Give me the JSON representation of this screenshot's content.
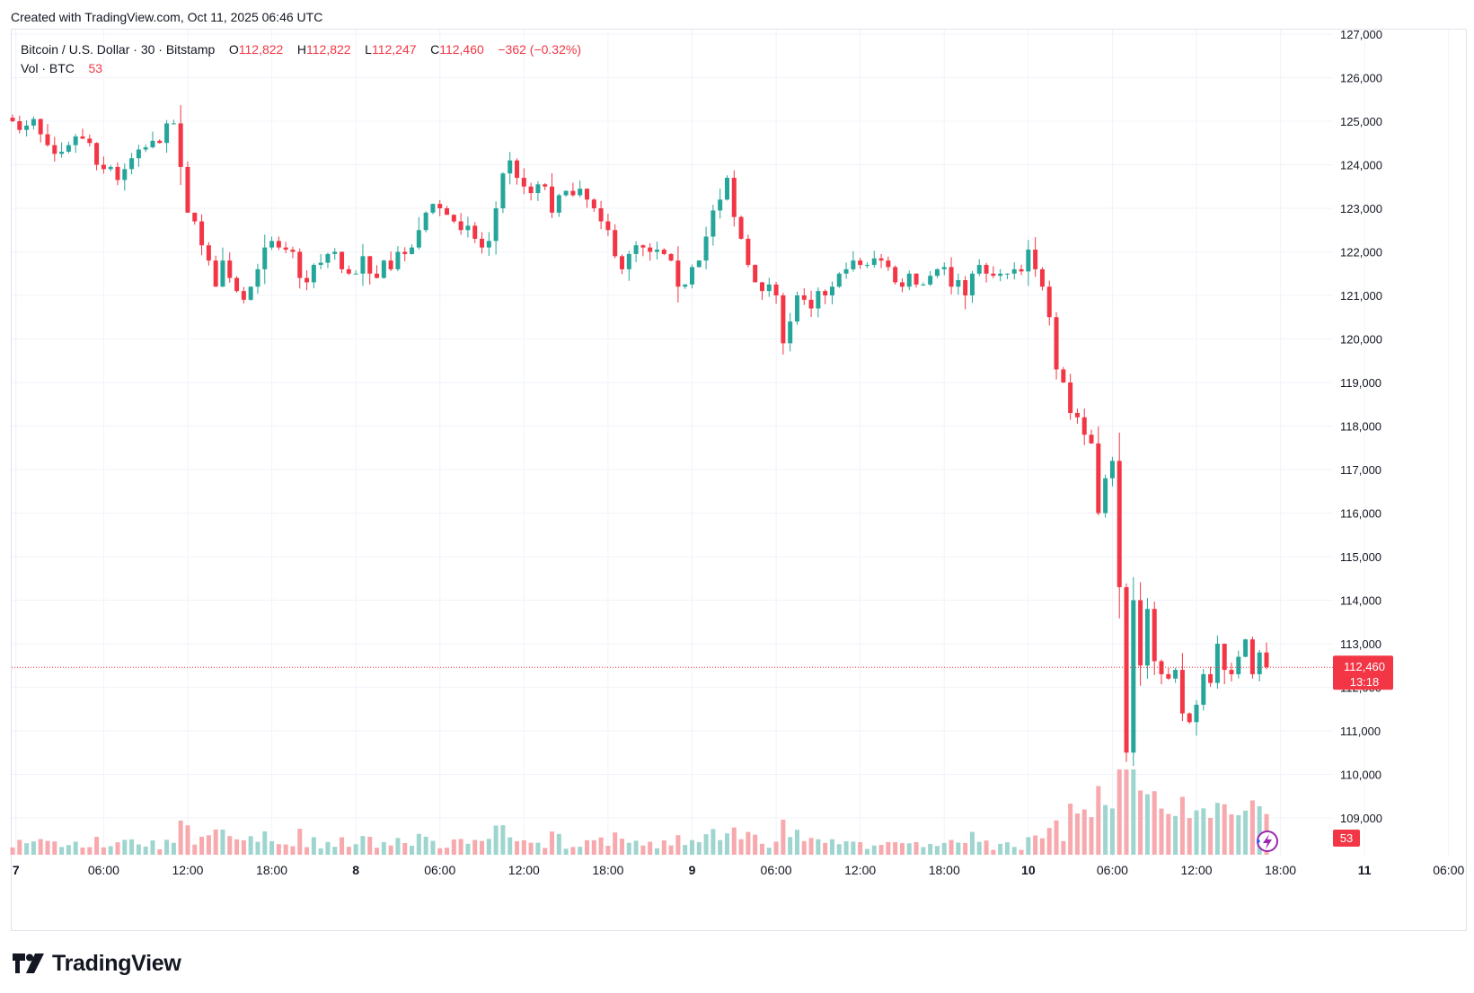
{
  "caption": "Created with TradingView.com, Oct 11, 2025 06:46 UTC",
  "legend": {
    "symbol": "Bitcoin / U.S. Dollar · 30 · Bitstamp",
    "o_label": "O",
    "o_value": "112,822",
    "h_label": "H",
    "h_value": "112,822",
    "l_label": "L",
    "l_value": "112,247",
    "c_label": "C",
    "c_value": "112,460",
    "change": "−362 (−0.32%)",
    "vol_label": "Vol · BTC",
    "vol_value": "53"
  },
  "brand": {
    "name": "TradingView",
    "logo_icon": "tradingview-logo-icon"
  },
  "colors": {
    "up": "#26a69a",
    "down": "#f23645",
    "vol_up": "#9fd5cf",
    "vol_down": "#f7a9ad",
    "grid": "#f0f3fa",
    "text": "#131722"
  },
  "chart_data": {
    "type": "candlestick",
    "interval": "30",
    "ylim": [
      108000,
      127500
    ],
    "y_ticks": [
      "109,000",
      "110,000",
      "111,000",
      "112,000",
      "113,000",
      "114,000",
      "115,000",
      "116,000",
      "117,000",
      "118,000",
      "119,000",
      "120,000",
      "121,000",
      "122,000",
      "123,000",
      "124,000",
      "125,000",
      "126,000",
      "127,000"
    ],
    "x_ticks": [
      {
        "label": "7",
        "bold": true
      },
      {
        "label": "06:00",
        "bold": false
      },
      {
        "label": "12:00",
        "bold": false
      },
      {
        "label": "18:00",
        "bold": false
      },
      {
        "label": "8",
        "bold": true
      },
      {
        "label": "06:00",
        "bold": false
      },
      {
        "label": "12:00",
        "bold": false
      },
      {
        "label": "18:00",
        "bold": false
      },
      {
        "label": "9",
        "bold": true
      },
      {
        "label": "06:00",
        "bold": false
      },
      {
        "label": "12:00",
        "bold": false
      },
      {
        "label": "18:00",
        "bold": false
      },
      {
        "label": "10",
        "bold": true
      },
      {
        "label": "06:00",
        "bold": false
      },
      {
        "label": "12:00",
        "bold": false
      },
      {
        "label": "18:00",
        "bold": false
      },
      {
        "label": "11",
        "bold": true
      },
      {
        "label": "06:00",
        "bold": false
      }
    ],
    "last_price": 112460,
    "last_price_label": "112,460",
    "countdown": "13:18",
    "last_volume_label": "53",
    "closes": [
      125000,
      124800,
      124900,
      125050,
      124700,
      124450,
      124250,
      124300,
      124450,
      124650,
      124600,
      124500,
      124000,
      123900,
      123950,
      123650,
      123900,
      124150,
      124350,
      124400,
      124550,
      124500,
      124950,
      124950,
      123950,
      122900,
      122700,
      122150,
      121800,
      121200,
      121800,
      121400,
      121100,
      120900,
      121200,
      121600,
      122100,
      122250,
      122100,
      122050,
      122000,
      121400,
      121300,
      121700,
      121750,
      121950,
      122000,
      121600,
      121500,
      121500,
      121900,
      121500,
      121400,
      121800,
      121600,
      122000,
      121950,
      122100,
      122500,
      122900,
      123100,
      123000,
      122850,
      122700,
      122500,
      122600,
      122300,
      122100,
      122250,
      123000,
      123800,
      124100,
      123700,
      123500,
      123350,
      123550,
      123500,
      122900,
      123300,
      123400,
      123300,
      123450,
      123200,
      123000,
      122700,
      122500,
      121900,
      121600,
      121950,
      122150,
      122100,
      122000,
      122050,
      121950,
      121800,
      121200,
      121250,
      121650,
      121800,
      122350,
      122950,
      123200,
      123700,
      122800,
      122300,
      121700,
      121300,
      121100,
      121250,
      121000,
      119900,
      120400,
      121000,
      120900,
      120700,
      121100,
      121000,
      121200,
      121500,
      121600,
      121800,
      121700,
      121700,
      121850,
      121800,
      121650,
      121300,
      121200,
      121500,
      121250,
      121250,
      121450,
      121600,
      121650,
      121200,
      121350,
      121000,
      121500,
      121700,
      121500,
      121450,
      121500,
      121500,
      121600,
      121550,
      122050,
      121600,
      121200,
      120500,
      119300,
      119000,
      118300,
      118200,
      117800,
      117600,
      116000,
      116800,
      117200,
      114300,
      110500,
      114000,
      112500,
      113800,
      112600,
      112300,
      112200,
      112400,
      111400,
      111200,
      111600,
      112300,
      112100,
      113000,
      112400,
      112300,
      112700,
      113100,
      112300,
      112800,
      112460
    ]
  }
}
